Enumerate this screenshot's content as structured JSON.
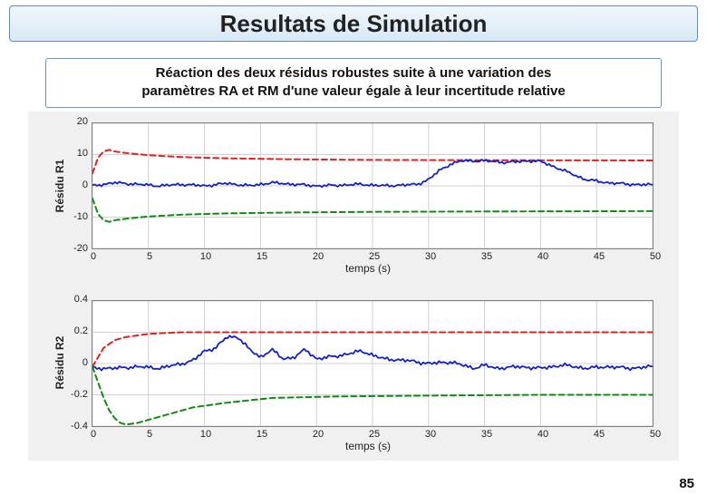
{
  "header": {
    "title": "Resultats de Simulation"
  },
  "subtitle": {
    "line1": "Réaction des deux résidus robustes suite à une variation des",
    "line2": "paramètres RA et RM d'une valeur égale à leur incertitude relative"
  },
  "page_number": "85",
  "panel": {
    "background_color": "#f0f0f0",
    "plot_bg": "#ffffff",
    "border_color": "#808080"
  },
  "chart1": {
    "type": "line",
    "ylabel": "Résidu R1",
    "xlabel": "temps (s)",
    "xlim": [
      0,
      50
    ],
    "ylim": [
      -20,
      20
    ],
    "xticks": [
      0,
      5,
      10,
      15,
      20,
      25,
      30,
      35,
      40,
      45,
      50
    ],
    "yticks": [
      -20,
      -10,
      0,
      10,
      20
    ],
    "grid_color": "#d0d0d0",
    "series": [
      {
        "name": "upper-bound",
        "color": "#de2020",
        "dash": "6,4",
        "width": 2.0,
        "points": [
          [
            0,
            4
          ],
          [
            0.5,
            9
          ],
          [
            1,
            11
          ],
          [
            1.5,
            11.5
          ],
          [
            2,
            11
          ],
          [
            3,
            10.5
          ],
          [
            5,
            9.8
          ],
          [
            8,
            9.2
          ],
          [
            12,
            8.8
          ],
          [
            18,
            8.5
          ],
          [
            25,
            8.3
          ],
          [
            35,
            8.2
          ],
          [
            50,
            8.1
          ]
        ]
      },
      {
        "name": "signal",
        "color": "#1020d0",
        "dash": "",
        "width": 1.8,
        "noise": 0.6,
        "points": [
          [
            0,
            0
          ],
          [
            2,
            1
          ],
          [
            4,
            0.5
          ],
          [
            6,
            0
          ],
          [
            8,
            0.5
          ],
          [
            10,
            0
          ],
          [
            12,
            0.8
          ],
          [
            14,
            0
          ],
          [
            16,
            1
          ],
          [
            18,
            0.5
          ],
          [
            20,
            0
          ],
          [
            22,
            0.2
          ],
          [
            24,
            0.5
          ],
          [
            26,
            0
          ],
          [
            28,
            0.3
          ],
          [
            29,
            0.5
          ],
          [
            30,
            2
          ],
          [
            31,
            5
          ],
          [
            32,
            7
          ],
          [
            33,
            8
          ],
          [
            35,
            8
          ],
          [
            37,
            7.5
          ],
          [
            39,
            8
          ],
          [
            40,
            7.8
          ],
          [
            42,
            5
          ],
          [
            44,
            2
          ],
          [
            46,
            1
          ],
          [
            48,
            0.5
          ],
          [
            50,
            0.3
          ]
        ]
      },
      {
        "name": "lower-bound",
        "color": "#108a10",
        "dash": "6,4",
        "width": 2.0,
        "points": [
          [
            0,
            -4
          ],
          [
            0.5,
            -9
          ],
          [
            1,
            -11
          ],
          [
            1.5,
            -11.5
          ],
          [
            2,
            -11
          ],
          [
            3,
            -10.5
          ],
          [
            5,
            -9.8
          ],
          [
            8,
            -9.2
          ],
          [
            12,
            -8.8
          ],
          [
            18,
            -8.5
          ],
          [
            25,
            -8.3
          ],
          [
            35,
            -8.2
          ],
          [
            50,
            -8.1
          ]
        ]
      }
    ]
  },
  "chart2": {
    "type": "line",
    "ylabel": "Résidu R2",
    "xlabel": "temps (s)",
    "xlim": [
      0,
      50
    ],
    "ylim": [
      -0.4,
      0.4
    ],
    "xticks": [
      0,
      5,
      10,
      15,
      20,
      25,
      30,
      35,
      40,
      45,
      50
    ],
    "yticks": [
      -0.4,
      -0.2,
      0,
      0.2,
      0.4
    ],
    "grid_color": "#d0d0d0",
    "series": [
      {
        "name": "upper-bound",
        "color": "#de2020",
        "dash": "6,4",
        "width": 2.0,
        "points": [
          [
            0,
            -0.02
          ],
          [
            0.5,
            0.04
          ],
          [
            1,
            0.1
          ],
          [
            2,
            0.15
          ],
          [
            3,
            0.17
          ],
          [
            5,
            0.19
          ],
          [
            8,
            0.2
          ],
          [
            12,
            0.2
          ],
          [
            20,
            0.2
          ],
          [
            30,
            0.2
          ],
          [
            40,
            0.2
          ],
          [
            50,
            0.2
          ]
        ]
      },
      {
        "name": "signal",
        "color": "#1020d0",
        "dash": "",
        "width": 1.8,
        "noise": 0.015,
        "points": [
          [
            0,
            -0.03
          ],
          [
            2,
            -0.03
          ],
          [
            4,
            -0.02
          ],
          [
            6,
            -0.03
          ],
          [
            8,
            0
          ],
          [
            9,
            0.02
          ],
          [
            10,
            0.08
          ],
          [
            11,
            0.1
          ],
          [
            12,
            0.17
          ],
          [
            13,
            0.17
          ],
          [
            14,
            0.09
          ],
          [
            15,
            0.04
          ],
          [
            16,
            0.09
          ],
          [
            17,
            0.03
          ],
          [
            18,
            0.04
          ],
          [
            19,
            0.09
          ],
          [
            20,
            0.03
          ],
          [
            22,
            0.05
          ],
          [
            24,
            0.08
          ],
          [
            26,
            0.03
          ],
          [
            28,
            0.02
          ],
          [
            30,
            0
          ],
          [
            32,
            0.01
          ],
          [
            34,
            -0.03
          ],
          [
            35,
            -0.01
          ],
          [
            36,
            -0.03
          ],
          [
            38,
            -0.02
          ],
          [
            40,
            -0.03
          ],
          [
            42,
            -0.01
          ],
          [
            44,
            -0.03
          ],
          [
            46,
            -0.02
          ],
          [
            48,
            -0.03
          ],
          [
            50,
            -0.02
          ]
        ]
      },
      {
        "name": "lower-bound",
        "color": "#108a10",
        "dash": "6,4",
        "width": 2.0,
        "points": [
          [
            0,
            -0.02
          ],
          [
            0.5,
            -0.12
          ],
          [
            1,
            -0.22
          ],
          [
            1.5,
            -0.3
          ],
          [
            2,
            -0.35
          ],
          [
            2.5,
            -0.38
          ],
          [
            3,
            -0.39
          ],
          [
            4,
            -0.38
          ],
          [
            5,
            -0.36
          ],
          [
            7,
            -0.32
          ],
          [
            9,
            -0.28
          ],
          [
            12,
            -0.25
          ],
          [
            16,
            -0.22
          ],
          [
            22,
            -0.21
          ],
          [
            30,
            -0.205
          ],
          [
            40,
            -0.2
          ],
          [
            50,
            -0.2
          ]
        ]
      }
    ]
  }
}
